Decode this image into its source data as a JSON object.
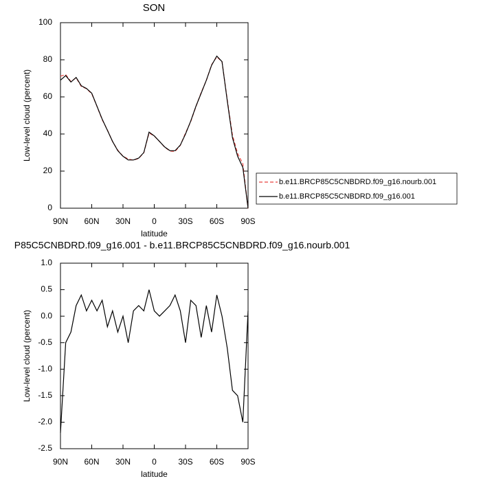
{
  "chart_data": [
    {
      "type": "line",
      "title": "SON",
      "xlabel": "latitude",
      "ylabel": "Low-level cloud (percent)",
      "x": [
        90,
        85,
        80,
        75,
        70,
        65,
        60,
        55,
        50,
        45,
        40,
        35,
        30,
        25,
        20,
        15,
        10,
        5,
        0,
        -5,
        -10,
        -15,
        -20,
        -25,
        -30,
        -35,
        -40,
        -45,
        -50,
        -55,
        -60,
        -65,
        -70,
        -75,
        -80,
        -85,
        -90
      ],
      "series": [
        {
          "name": "b.e11.BRCP85C5CNBDRD.f09_g16.nourb.001",
          "color": "#e8413c",
          "dash": true,
          "values": [
            71.2,
            72,
            68.3,
            70.3,
            65.6,
            64.4,
            61.7,
            54.9,
            47.7,
            42.2,
            35.9,
            31.3,
            28,
            26.5,
            25.9,
            26.8,
            29.9,
            40.5,
            38.9,
            36,
            32.9,
            30.8,
            30.6,
            33.9,
            40.5,
            46.7,
            54.8,
            62.4,
            68.8,
            77.3,
            81.6,
            79,
            58.6,
            39.4,
            29.5,
            24,
            -0.1
          ]
        },
        {
          "name": "b.e11.BRCP85C5CNBDRD.f09_g16.001",
          "color": "#000000",
          "dash": false,
          "values": [
            69,
            71.5,
            68,
            70.5,
            66,
            64.5,
            62,
            55,
            48,
            42,
            36,
            31,
            28,
            26,
            26,
            27,
            30,
            41,
            39,
            36,
            33,
            31,
            31,
            34,
            40,
            47,
            55,
            62,
            69,
            77,
            82,
            79,
            58,
            38,
            28,
            22,
            0
          ]
        }
      ],
      "xlim": [
        90,
        -90
      ],
      "xticks": [
        {
          "value": 90,
          "label": "90N"
        },
        {
          "value": 60,
          "label": "60N"
        },
        {
          "value": 30,
          "label": "30N"
        },
        0,
        {
          "value": -30,
          "label": "30S"
        },
        {
          "value": -60,
          "label": "60S"
        },
        {
          "value": -90,
          "label": "90S"
        }
      ],
      "ylim": [
        0,
        100
      ],
      "yticks": [
        0,
        20,
        40,
        60,
        80,
        100
      ],
      "legend": "right"
    },
    {
      "type": "line",
      "title": "P85C5CNBDRD.f09_g16.001 - b.e11.BRCP85C5CNBDRD.f09_g16.nourb.001",
      "xlabel": "latitude",
      "ylabel": "Low-level cloud (percent)",
      "x": [
        90,
        85,
        80,
        75,
        70,
        65,
        60,
        55,
        50,
        45,
        40,
        35,
        30,
        25,
        20,
        15,
        10,
        5,
        0,
        -5,
        -10,
        -15,
        -20,
        -25,
        -30,
        -35,
        -40,
        -45,
        -50,
        -55,
        -60,
        -65,
        -70,
        -75,
        -80,
        -85,
        -90
      ],
      "series": [
        {
          "color": "#000000",
          "dash": false,
          "values": [
            -2.2,
            -0.5,
            -0.3,
            0.2,
            0.4,
            0.1,
            0.3,
            0.1,
            0.3,
            -0.2,
            0.1,
            -0.3,
            0,
            -0.5,
            0.1,
            0.2,
            0.1,
            0.5,
            0.1,
            0,
            0.1,
            0.2,
            0.4,
            0.1,
            -0.5,
            0.3,
            0.2,
            -0.4,
            0.2,
            -0.3,
            0.4,
            0,
            -0.6,
            -1.4,
            -1.5,
            -2,
            0.1
          ]
        }
      ],
      "xlim": [
        90,
        -90
      ],
      "xticks": [
        {
          "value": 90,
          "label": "90N"
        },
        {
          "value": 60,
          "label": "60N"
        },
        {
          "value": 30,
          "label": "30N"
        },
        0,
        {
          "value": -30,
          "label": "30S"
        },
        {
          "value": -60,
          "label": "60S"
        },
        {
          "value": -90,
          "label": "90S"
        }
      ],
      "ylim": [
        -2.5,
        1
      ],
      "yticks": [
        {
          "value": -2.5,
          "label": "-2.5"
        },
        {
          "value": -2,
          "label": "-2.0"
        },
        {
          "value": -1.5,
          "label": "-1.5"
        },
        {
          "value": -1,
          "label": "-1.0"
        },
        -0.5,
        {
          "value": 0,
          "label": "0.0"
        },
        0.5,
        {
          "value": 1,
          "label": "1.0"
        }
      ]
    }
  ]
}
